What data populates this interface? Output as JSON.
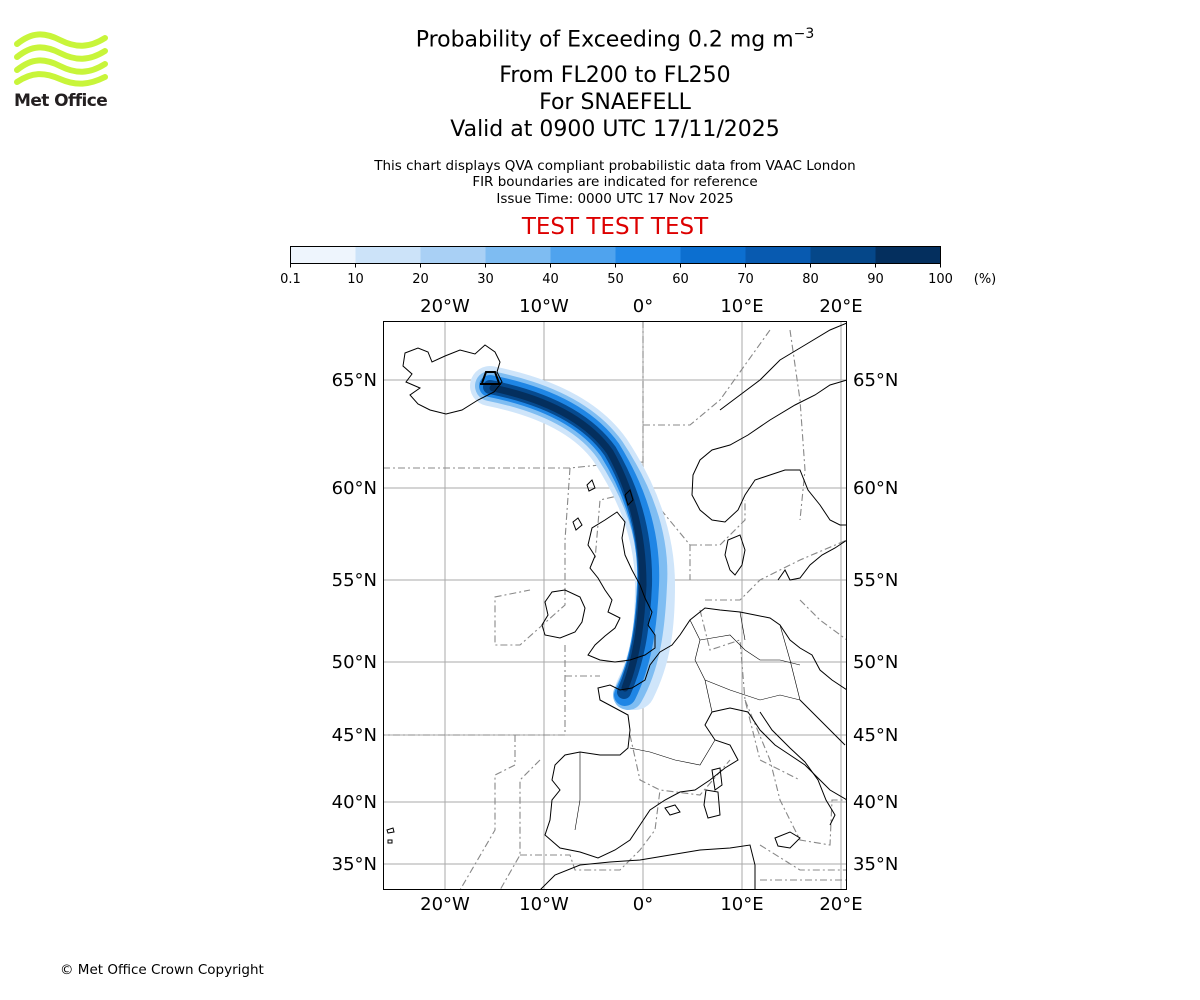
{
  "title": {
    "line1": "Probability of Exceeding 0.2 mg m",
    "line1_sup": "−3",
    "line2": "From FL200 to FL250",
    "line3": "For SNAEFELL",
    "line4": "Valid at 0900 UTC 17/11/2025"
  },
  "subtitle": {
    "line1": "This chart displays QVA compliant probabilistic data from VAAC London",
    "line2": "FIR boundaries are indicated for reference",
    "line3": "Issue Time: 0000 UTC 17 Nov 2025"
  },
  "banner": "TEST TEST TEST",
  "logo": {
    "text": "Met Office",
    "icon": "met-office-wave-logo",
    "color": "#c8f53a"
  },
  "colorbar": {
    "ticks": [
      "0.1",
      "10",
      "20",
      "30",
      "40",
      "50",
      "60",
      "70",
      "80",
      "90",
      "100"
    ],
    "unit": "(%)",
    "colors": [
      "#eef5fd",
      "#cce3f9",
      "#a9d0f5",
      "#7ebcf2",
      "#4fa3ee",
      "#2389e8",
      "#0c6fd0",
      "#085ab0",
      "#054789",
      "#042f5e"
    ]
  },
  "map": {
    "top_labels": [
      "20°W",
      "10°W",
      "0°",
      "10°E",
      "20°E"
    ],
    "bottom_labels": [
      "20°W",
      "10°W",
      "0°",
      "10°E",
      "20°E"
    ],
    "left_labels": [
      "65°N",
      "60°N",
      "55°N",
      "50°N",
      "45°N",
      "40°N",
      "35°N"
    ],
    "right_labels": [
      "65°N",
      "60°N",
      "55°N",
      "50°N",
      "45°N",
      "40°N",
      "35°N"
    ],
    "volcano_icon": "volcano-icon"
  },
  "copyright": "© Met Office Crown Copyright"
}
